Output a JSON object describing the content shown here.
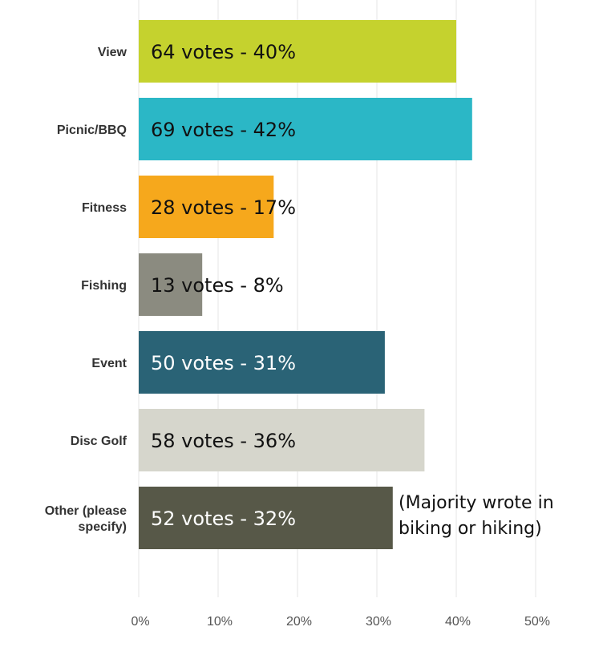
{
  "chart_data": {
    "type": "bar",
    "orientation": "horizontal",
    "categories": [
      [
        "View"
      ],
      [
        "Picnic/BBQ"
      ],
      [
        "Fitness"
      ],
      [
        "Fishing"
      ],
      [
        "Event"
      ],
      [
        "Disc Golf"
      ],
      [
        "Other (please",
        "specify)"
      ]
    ],
    "values": [
      40,
      42,
      17,
      8,
      31,
      36,
      32
    ],
    "data_labels": [
      "64 votes - 40%",
      "69 votes - 42%",
      "28 votes - 17%",
      "13 votes - 8%",
      "50 votes - 31%",
      "58 votes - 36%",
      "52 votes - 32%"
    ],
    "bar_colors": [
      "#c5d22e",
      "#2bb7c6",
      "#f6a81c",
      "#8b8b80",
      "#2a6376",
      "#d6d6cc",
      "#575848"
    ],
    "data_label_colors": [
      "#111111",
      "#111111",
      "#111111",
      "#111111",
      "#ffffff",
      "#111111",
      "#ffffff"
    ],
    "x_ticks": [
      0,
      10,
      20,
      30,
      40,
      50
    ],
    "x_tick_labels": [
      "0%",
      "10%",
      "20%",
      "30%",
      "40%",
      "50%"
    ],
    "xlim": [
      0,
      57
    ],
    "grid": true,
    "title": "",
    "xlabel": "",
    "ylabel": "",
    "annotation": {
      "lines": [
        "(Majority wrote in",
        "biking or hiking)"
      ],
      "category_index": 6
    }
  }
}
